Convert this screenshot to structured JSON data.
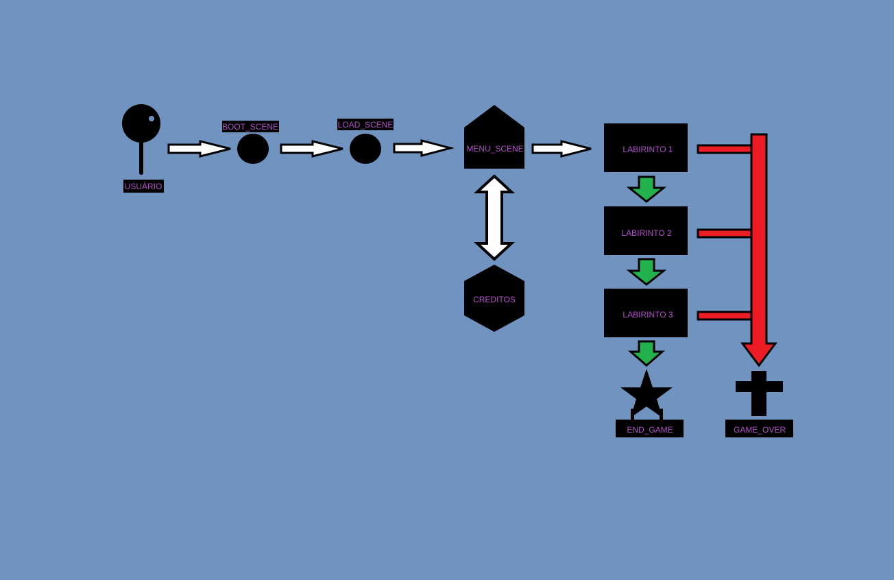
{
  "colors": {
    "background": "#7093bf",
    "node_fill": "#000000",
    "label_text": "#b04fc9",
    "flow_arrow": "#ffffff",
    "level_arrow": "#22b14c",
    "fail_arrow": "#ed1c24"
  },
  "nodes": {
    "user": {
      "label": "USUÁRIO",
      "icon": "pin-icon"
    },
    "boot": {
      "label": "BOOT_SCENE",
      "icon": "circle-icon"
    },
    "load": {
      "label": "LOAD_SCENE",
      "icon": "circle-icon"
    },
    "menu": {
      "label": "MENU_SCENE",
      "icon": "pentagon-icon"
    },
    "credits": {
      "label": "CREDITOS",
      "icon": "hexagon-icon"
    },
    "level1": {
      "label": "LABIRINTO 1"
    },
    "level2": {
      "label": "LABIRINTO 2"
    },
    "level3": {
      "label": "LABIRINTO 3"
    },
    "end": {
      "label": "END_GAME",
      "icon": "star-icon"
    },
    "gameover": {
      "label": "GAME_OVER",
      "icon": "cross-icon"
    }
  }
}
